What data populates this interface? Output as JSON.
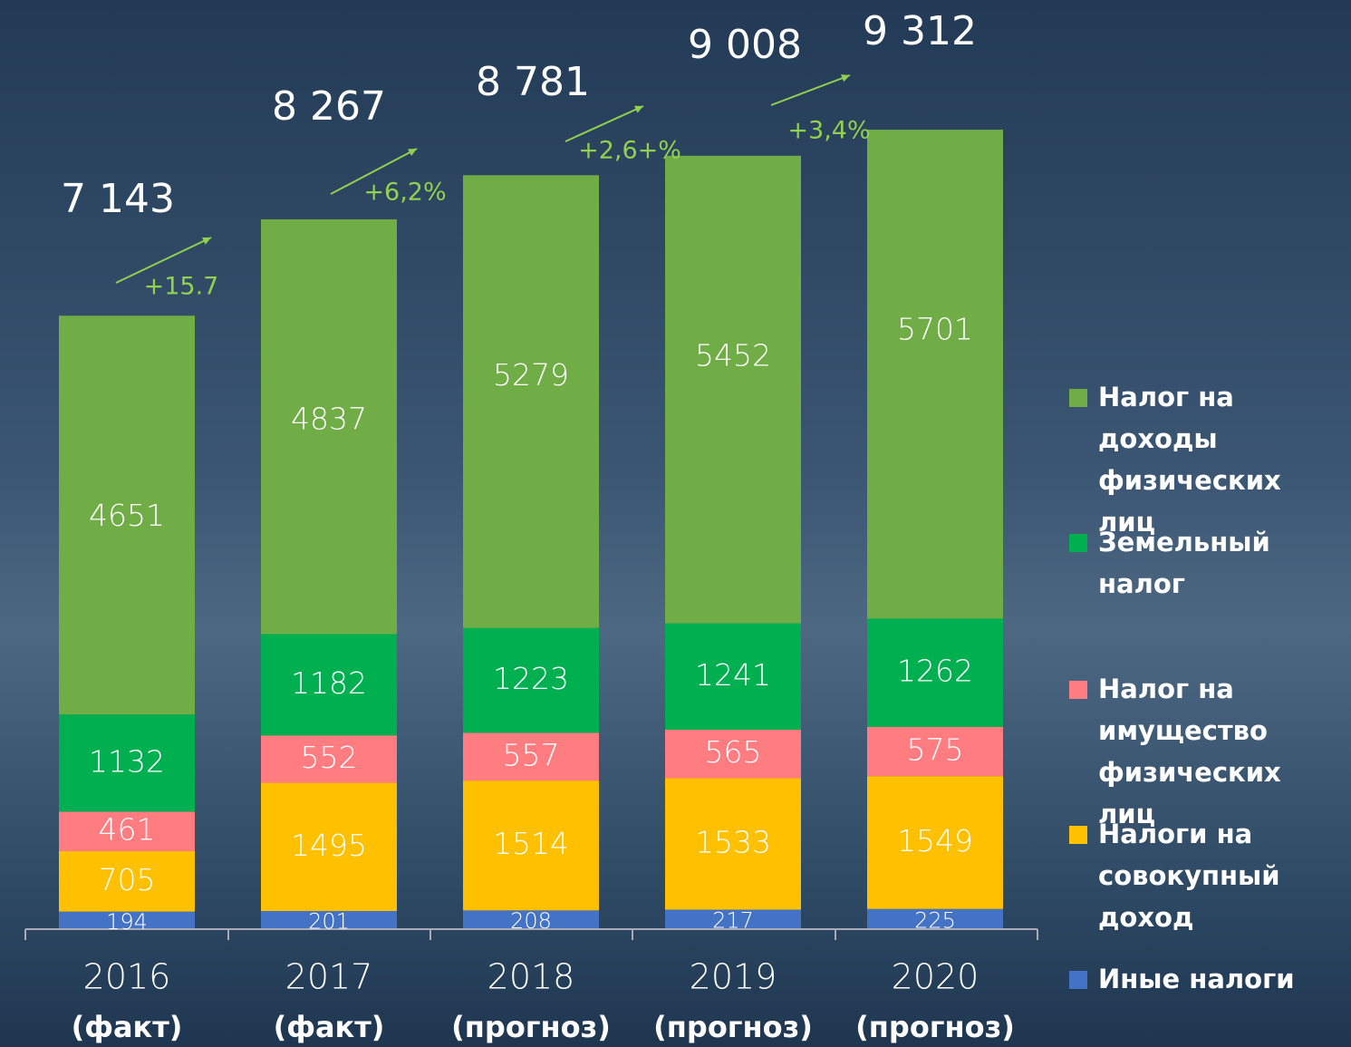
{
  "chart_data": {
    "type": "stacked_bar",
    "categories": [
      "2016",
      "2017",
      "2018",
      "2019",
      "2020"
    ],
    "category_notes": [
      "(факт)",
      "(факт)",
      "(прогноз)",
      "(прогноз)",
      "(прогноз)"
    ],
    "series": [
      {
        "name": "Налог на доходы физических лиц",
        "color": "#70ad47",
        "values": [
          4651,
          4837,
          5279,
          5452,
          5701
        ]
      },
      {
        "name": "Земельный налог",
        "color": "#00b050",
        "values": [
          1132,
          1182,
          1223,
          1241,
          1262
        ]
      },
      {
        "name": "Налог на имущество физических лиц",
        "color": "#ff7c80",
        "values": [
          461,
          552,
          557,
          565,
          575
        ]
      },
      {
        "name": "Налоги на совокупный доход",
        "color": "#ffc000",
        "values": [
          705,
          1495,
          1514,
          1533,
          1549
        ]
      },
      {
        "name": "Иные налоги",
        "color": "#4472c4",
        "values": [
          194,
          201,
          208,
          217,
          225
        ]
      }
    ],
    "totals": [
      7143,
      8267,
      8781,
      9008,
      9312
    ],
    "total_labels": [
      "7 143",
      "8 267",
      "8 781",
      "9 008",
      "9 312"
    ],
    "growth_labels": [
      "+15.7",
      "+6,2%",
      "+2,6+%",
      "+3,4%"
    ],
    "growth_color": "#92d050"
  }
}
